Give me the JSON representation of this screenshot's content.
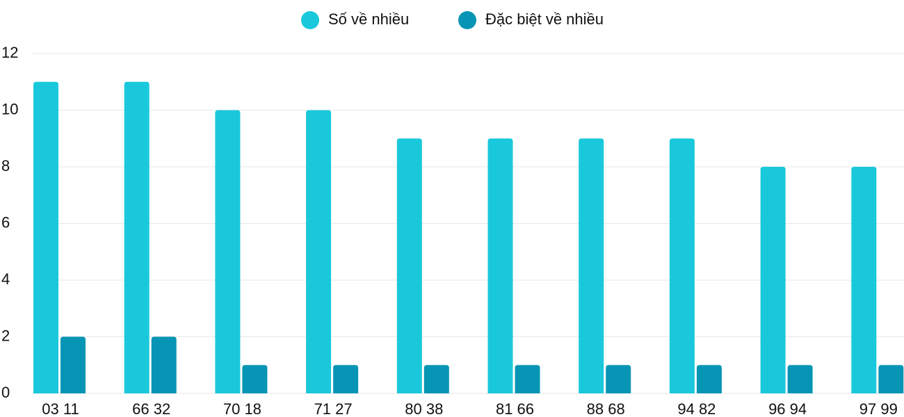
{
  "chart_data": {
    "type": "bar",
    "categories": [
      "03 11",
      "66 32",
      "70 18",
      "71 27",
      "80 38",
      "81 66",
      "88 68",
      "94 82",
      "96 94",
      "97 99"
    ],
    "series": [
      {
        "name": "Số về nhiều",
        "color": "#1ac8db",
        "values": [
          11,
          11,
          10,
          10,
          9,
          9,
          9,
          9,
          8,
          8
        ]
      },
      {
        "name": "Đặc biệt về nhiều",
        "color": "#0795b5",
        "values": [
          2,
          2,
          1,
          1,
          1,
          1,
          1,
          1,
          1,
          1
        ]
      }
    ],
    "ylim": [
      0,
      12
    ],
    "yticks": [
      0,
      2,
      4,
      6,
      8,
      10,
      12
    ],
    "grid": true,
    "legend": "top"
  }
}
